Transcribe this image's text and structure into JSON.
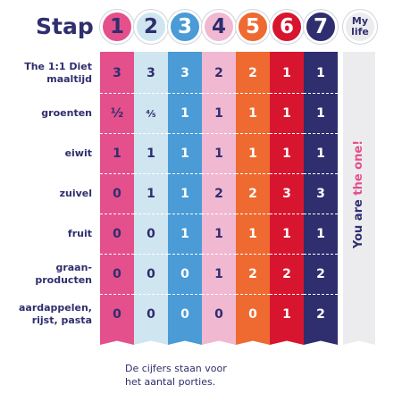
{
  "title": "Stap",
  "steps": [
    {
      "label": "1",
      "color": "#e4508c"
    },
    {
      "label": "2",
      "color": "#cfe6f0"
    },
    {
      "label": "3",
      "color": "#4a9bd6"
    },
    {
      "label": "4",
      "color": "#f1b8d2"
    },
    {
      "label": "5",
      "color": "#ee6a31"
    },
    {
      "label": "6",
      "color": "#d8152f"
    },
    {
      "label": "7",
      "color": "#2f2e6e"
    }
  ],
  "my_life_label": {
    "line1": "My",
    "line2": "life"
  },
  "rows": [
    {
      "label_lines": [
        "The 1:1 Diet",
        "maaltijd"
      ],
      "values": [
        "3",
        "3",
        "3",
        "2",
        "2",
        "1",
        "1"
      ]
    },
    {
      "label_lines": [
        "groenten"
      ],
      "values": [
        "½",
        "⁴⁄₅",
        "1",
        "1",
        "1",
        "1",
        "1"
      ]
    },
    {
      "label_lines": [
        "eiwit"
      ],
      "values": [
        "1",
        "1",
        "1",
        "1",
        "1",
        "1",
        "1"
      ]
    },
    {
      "label_lines": [
        "zuivel"
      ],
      "values": [
        "0",
        "1",
        "1",
        "2",
        "2",
        "3",
        "3"
      ]
    },
    {
      "label_lines": [
        "fruit"
      ],
      "values": [
        "0",
        "0",
        "1",
        "1",
        "1",
        "1",
        "1"
      ]
    },
    {
      "label_lines": [
        "graan-",
        "producten"
      ],
      "values": [
        "0",
        "0",
        "0",
        "1",
        "2",
        "2",
        "2"
      ]
    },
    {
      "label_lines": [
        "aardappelen,",
        "rijst, pasta"
      ],
      "values": [
        "0",
        "0",
        "0",
        "0",
        "0",
        "1",
        "2"
      ]
    }
  ],
  "vertical_text": {
    "part1": "You are ",
    "part2": "the one!"
  },
  "footnote": {
    "line1": "De cijfers staan voor",
    "line2": "het aantal porties."
  }
}
